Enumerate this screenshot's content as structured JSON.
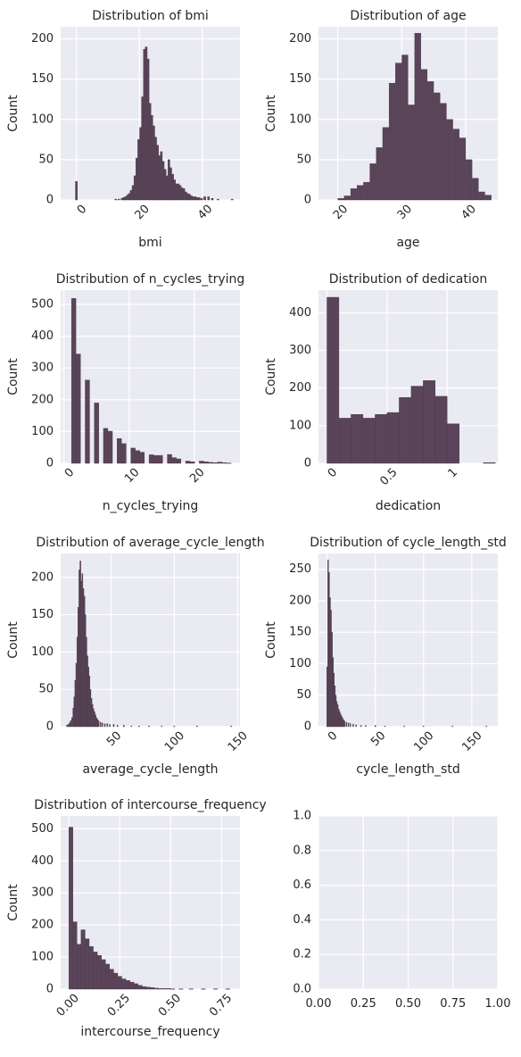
{
  "chart_data": [
    {
      "type": "bar",
      "title": "Distribution of bmi",
      "xlabel": "bmi",
      "ylabel": "Count",
      "xlim": [
        -5,
        52
      ],
      "ylim": [
        0,
        215
      ],
      "xticks": [
        0,
        20,
        40
      ],
      "yticks": [
        0,
        50,
        100,
        150,
        200
      ],
      "xtick_rotation": 45,
      "bin_width": 0.62,
      "bins_x": [
        0,
        12.5,
        13.5,
        14.5,
        15.0,
        15.6,
        16.2,
        16.8,
        17.4,
        18.0,
        18.6,
        19.2,
        19.8,
        20.4,
        21.0,
        21.6,
        22.2,
        22.8,
        23.4,
        24.0,
        24.6,
        25.2,
        25.8,
        26.4,
        27.0,
        27.6,
        28.2,
        28.8,
        29.4,
        30.0,
        30.6,
        31.2,
        31.8,
        32.4,
        33.0,
        33.6,
        34.2,
        34.8,
        35.4,
        36.0,
        36.6,
        37.2,
        37.8,
        38.4,
        39.0,
        39.8,
        40.8,
        42.0,
        43.2,
        45.0,
        49.5
      ],
      "values": [
        23,
        1,
        1,
        2,
        3,
        4,
        6,
        8,
        12,
        18,
        30,
        52,
        75,
        90,
        128,
        187,
        190,
        175,
        120,
        105,
        92,
        78,
        68,
        55,
        60,
        48,
        38,
        30,
        50,
        40,
        32,
        25,
        20,
        20,
        18,
        15,
        14,
        10,
        8,
        7,
        5,
        4,
        4,
        3,
        3,
        2,
        4,
        4,
        2,
        1,
        1
      ]
    },
    {
      "type": "bar",
      "title": "Distribution of age",
      "xlabel": "age",
      "ylabel": "Count",
      "xlim": [
        17,
        45
      ],
      "ylim": [
        0,
        215
      ],
      "xticks": [
        20,
        30,
        40
      ],
      "yticks": [
        0,
        50,
        100,
        150,
        200
      ],
      "xtick_rotation": 45,
      "bin_width": 0.95,
      "bins_x": [
        20.5,
        21.5,
        22.5,
        23.5,
        24.5,
        25.5,
        26.5,
        27.5,
        28.5,
        29.5,
        30.5,
        31.5,
        32.5,
        33.5,
        34.5,
        35.5,
        36.5,
        37.5,
        38.5,
        39.5,
        40.5,
        41.5,
        42.5,
        43.5
      ],
      "values": [
        2,
        5,
        14,
        18,
        22,
        45,
        65,
        90,
        145,
        170,
        180,
        118,
        207,
        162,
        147,
        133,
        120,
        100,
        88,
        77,
        50,
        27,
        10,
        6
      ]
    },
    {
      "type": "bar",
      "title": "Distribution of n_cycles_trying",
      "xlabel": "n_cycles_trying",
      "ylabel": "Count",
      "xlim": [
        -0.5,
        27
      ],
      "ylim": [
        0,
        545
      ],
      "xticks": [
        0,
        10,
        20
      ],
      "yticks": [
        0,
        100,
        200,
        300,
        400,
        500
      ],
      "xtick_rotation": 45,
      "bin_width": 0.68,
      "bins_x": [
        1.5,
        2.2,
        2.9,
        3.6,
        4.3,
        5.0,
        5.7,
        6.4,
        7.1,
        7.8,
        8.5,
        9.2,
        9.9,
        10.6,
        11.3,
        12.0,
        12.7,
        13.4,
        14.1,
        14.8,
        15.5,
        16.2,
        16.9,
        17.6,
        18.3,
        19.0,
        19.7,
        20.4,
        21.1,
        21.8,
        22.5,
        23.2,
        23.9,
        24.6,
        25.3
      ],
      "values": [
        519,
        344,
        0,
        262,
        0,
        190,
        0,
        110,
        101,
        0,
        78,
        62,
        0,
        48,
        40,
        35,
        0,
        27,
        25,
        25,
        0,
        28,
        18,
        14,
        0,
        7,
        5,
        0,
        7,
        5,
        3,
        2,
        4,
        2,
        1
      ]
    },
    {
      "type": "bar",
      "title": "Distribution of dedication",
      "xlabel": "dedication",
      "ylabel": "Count",
      "xlim": [
        -0.07,
        1.42
      ],
      "ylim": [
        0,
        460
      ],
      "xticks": [
        0.0,
        0.5,
        1.0
      ],
      "yticks": [
        0,
        100,
        200,
        300,
        400
      ],
      "xtick_rotation": 45,
      "bin_width": 0.0996,
      "bins_x": [
        0.05,
        0.15,
        0.25,
        0.35,
        0.45,
        0.55,
        0.65,
        0.75,
        0.85,
        0.95,
        1.05,
        1.15,
        1.25,
        1.35
      ],
      "values": [
        441,
        120,
        130,
        120,
        130,
        135,
        175,
        205,
        220,
        178,
        105,
        0,
        0,
        2
      ]
    },
    {
      "type": "bar",
      "title": "Distribution of average_cycle_length",
      "xlabel": "average_cycle_length",
      "ylabel": "Count",
      "xlim": [
        10,
        152
      ],
      "ylim": [
        0,
        232
      ],
      "xticks": [
        50,
        100,
        150
      ],
      "yticks": [
        0,
        50,
        100,
        150,
        200
      ],
      "xtick_rotation": 45,
      "bin_width": 0.78,
      "bins_x": [
        15.0,
        16.0,
        17.0,
        18.0,
        19.0,
        20.0,
        20.8,
        21.6,
        22.4,
        23.2,
        24.0,
        24.8,
        25.6,
        26.4,
        27.2,
        28.0,
        28.8,
        29.6,
        30.4,
        31.2,
        32.0,
        32.8,
        33.6,
        34.4,
        35.2,
        36.0,
        36.8,
        37.6,
        38.4,
        39.2,
        40.0,
        41.5,
        43.0,
        45.0,
        47.0,
        49.0,
        52.0,
        55.0,
        60.0,
        66.0,
        72.0,
        80.0,
        90.0,
        100.0,
        118.0,
        145.0
      ],
      "values": [
        2,
        3,
        5,
        8,
        12,
        25,
        40,
        62,
        85,
        120,
        160,
        210,
        222,
        195,
        205,
        185,
        175,
        150,
        120,
        95,
        80,
        68,
        50,
        38,
        30,
        24,
        20,
        16,
        12,
        10,
        8,
        6,
        5,
        4,
        4,
        3,
        3,
        2,
        2,
        1,
        1,
        1,
        1,
        1,
        1,
        1
      ]
    },
    {
      "type": "bar",
      "title": "Distribution of cycle_length_std",
      "xlabel": "cycle_length_std",
      "ylabel": "Count",
      "xlim": [
        -9,
        177
      ],
      "ylim": [
        0,
        275
      ],
      "xticks": [
        0,
        50,
        100,
        150
      ],
      "yticks": [
        0,
        50,
        100,
        150,
        200,
        250
      ],
      "xtick_rotation": 45,
      "bin_width": 0.9,
      "bins_x": [
        0.0,
        1.0,
        2.0,
        3.0,
        4.0,
        5.0,
        6.0,
        7.0,
        8.0,
        9.0,
        10.0,
        11.0,
        12.0,
        13.0,
        14.0,
        15.0,
        16.0,
        17.0,
        18.0,
        20.0,
        22.0,
        24.0,
        27.0,
        30.0,
        35.0,
        40.0,
        50.0,
        60.0,
        80.0,
        100.0,
        130.0,
        165.0
      ],
      "values": [
        95,
        265,
        245,
        205,
        185,
        150,
        110,
        85,
        65,
        50,
        40,
        35,
        28,
        24,
        20,
        17,
        14,
        11,
        9,
        7,
        6,
        5,
        4,
        3,
        2,
        2,
        2,
        1,
        1,
        1,
        1,
        1
      ]
    },
    {
      "type": "bar",
      "title": "Distribution of intercourse_frequency",
      "xlabel": "intercourse_frequency",
      "ylabel": "Count",
      "xlim": [
        -0.04,
        0.84
      ],
      "ylim": [
        0,
        540
      ],
      "xticks": [
        0.0,
        0.25,
        0.5,
        0.75
      ],
      "xtick_labels": [
        "0.00",
        "0.25",
        "0.50",
        "0.75"
      ],
      "yticks": [
        0,
        100,
        200,
        300,
        400,
        500
      ],
      "xtick_rotation": 45,
      "bin_width": 0.02,
      "bins_x": [
        0.01,
        0.03,
        0.05,
        0.07,
        0.09,
        0.11,
        0.13,
        0.15,
        0.17,
        0.19,
        0.21,
        0.23,
        0.25,
        0.27,
        0.29,
        0.31,
        0.33,
        0.35,
        0.37,
        0.39,
        0.41,
        0.43,
        0.45,
        0.47,
        0.49,
        0.51,
        0.55,
        0.6,
        0.66,
        0.72,
        0.78
      ],
      "values": [
        505,
        210,
        140,
        185,
        157,
        133,
        116,
        105,
        92,
        78,
        62,
        50,
        40,
        32,
        27,
        22,
        17,
        12,
        8,
        6,
        5,
        3,
        2,
        2,
        2,
        1,
        1,
        1,
        1,
        1,
        1
      ]
    },
    {
      "type": "empty",
      "title": "",
      "xlabel": "",
      "ylabel": "",
      "xlim": [
        0,
        1
      ],
      "ylim": [
        0,
        1
      ],
      "xticks": [
        0.0,
        0.25,
        0.5,
        0.75,
        1.0
      ],
      "xtick_labels": [
        "0.00",
        "0.25",
        "0.50",
        "0.75",
        "1.00"
      ],
      "yticks": [
        0.0,
        0.2,
        0.4,
        0.6,
        0.8,
        1.0
      ],
      "ytick_labels": [
        "0.0",
        "0.2",
        "0.4",
        "0.6",
        "0.8",
        "1.0"
      ],
      "xtick_rotation": 0,
      "bins_x": [],
      "values": []
    }
  ],
  "style": {
    "bar_color": "#5a4459",
    "bar_edge_color": "#4a3a4a",
    "panel_bg": "#eaeaf2",
    "grid_color": "#ffffff",
    "text_color": "#262626"
  }
}
